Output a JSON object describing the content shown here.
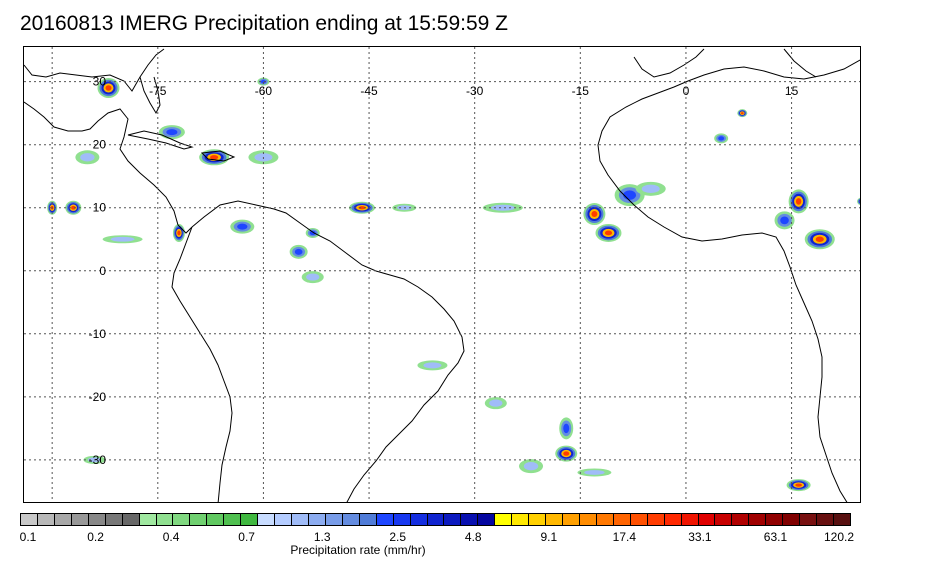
{
  "title": "20160813 IMERG Precipitation ending at 15:59:59 Z",
  "map": {
    "lon_labels": [
      "-75",
      "-60",
      "-45",
      "-30",
      "-15",
      "0",
      "15"
    ],
    "lon_values": [
      -75,
      -60,
      -45,
      -30,
      -15,
      0,
      15
    ],
    "lat_labels": [
      "30",
      "20",
      "10",
      "0",
      "-10",
      "-20",
      "-30"
    ],
    "lat_values": [
      30,
      20,
      10,
      0,
      -10,
      -20,
      -30
    ],
    "grid": "dotted",
    "coastline_color": "#000000"
  },
  "colorbar": {
    "label": "Precipitation rate (mm/hr)",
    "tick_labels": [
      "0.1",
      "0.2",
      "0.4",
      "0.7",
      "1.3",
      "2.5",
      "4.8",
      "9.1",
      "17.4",
      "33.1",
      "63.1",
      "120.2"
    ],
    "colors": [
      "#c8c8c8",
      "#b8b8b8",
      "#a8a8a8",
      "#989898",
      "#888888",
      "#787878",
      "#686868",
      "#a0e8a0",
      "#90e090",
      "#80d880",
      "#70d070",
      "#60c860",
      "#50c050",
      "#40b840",
      "#c8dcff",
      "#b4ccff",
      "#a0bcf8",
      "#8cacf0",
      "#789ce8",
      "#648ce0",
      "#507cd8",
      "#1e46ff",
      "#1838f0",
      "#142ee0",
      "#1024d0",
      "#0c1ac0",
      "#0810b0",
      "#0406a0",
      "#ffff00",
      "#ffe800",
      "#ffd000",
      "#ffb800",
      "#ffa000",
      "#ff8c00",
      "#ff7800",
      "#ff6400",
      "#ff5000",
      "#ff3c00",
      "#ff2800",
      "#f01400",
      "#e00000",
      "#c80000",
      "#b00000",
      "#a00000",
      "#900000",
      "#800000",
      "#781010",
      "#681010",
      "#581010"
    ]
  },
  "precip_cells": [
    {
      "lon": -82,
      "lat": 29,
      "w": 22,
      "h": 20,
      "level": "heavy"
    },
    {
      "lon": -67,
      "lat": 18,
      "w": 30,
      "h": 16,
      "level": "heavy"
    },
    {
      "lon": -73,
      "lat": 22,
      "w": 26,
      "h": 14,
      "level": "moderate"
    },
    {
      "lon": -46,
      "lat": 10,
      "w": 26,
      "h": 12,
      "level": "heavy"
    },
    {
      "lon": -87,
      "lat": 10,
      "w": 16,
      "h": 14,
      "level": "heavy"
    },
    {
      "lon": -72,
      "lat": 6,
      "w": 12,
      "h": 18,
      "level": "heavy"
    },
    {
      "lon": -63,
      "lat": 7,
      "w": 24,
      "h": 14,
      "level": "moderate"
    },
    {
      "lon": -55,
      "lat": 3,
      "w": 18,
      "h": 14,
      "level": "moderate"
    },
    {
      "lon": -53,
      "lat": -1,
      "w": 22,
      "h": 12,
      "level": "light"
    },
    {
      "lon": -26,
      "lat": 10,
      "w": 40,
      "h": 10,
      "level": "light"
    },
    {
      "lon": -40,
      "lat": 10,
      "w": 24,
      "h": 8,
      "level": "light"
    },
    {
      "lon": -13,
      "lat": 9,
      "w": 22,
      "h": 22,
      "level": "heavy"
    },
    {
      "lon": -11,
      "lat": 6,
      "w": 26,
      "h": 18,
      "level": "heavy"
    },
    {
      "lon": -8,
      "lat": 12,
      "w": 30,
      "h": 22,
      "level": "moderate"
    },
    {
      "lon": 5,
      "lat": 21,
      "w": 14,
      "h": 10,
      "level": "moderate"
    },
    {
      "lon": 8,
      "lat": 25,
      "w": 10,
      "h": 8,
      "level": "heavy"
    },
    {
      "lon": 16,
      "lat": 11,
      "w": 20,
      "h": 24,
      "level": "heavy"
    },
    {
      "lon": 19,
      "lat": 5,
      "w": 30,
      "h": 20,
      "level": "heavy"
    },
    {
      "lon": 14,
      "lat": 8,
      "w": 20,
      "h": 18,
      "level": "moderate"
    },
    {
      "lon": 25,
      "lat": 11,
      "w": 10,
      "h": 8,
      "level": "heavy"
    },
    {
      "lon": -17,
      "lat": -29,
      "w": 22,
      "h": 16,
      "level": "heavy"
    },
    {
      "lon": -17,
      "lat": -25,
      "w": 14,
      "h": 22,
      "level": "moderate"
    },
    {
      "lon": -27,
      "lat": -21,
      "w": 22,
      "h": 12,
      "level": "light"
    },
    {
      "lon": -36,
      "lat": -15,
      "w": 30,
      "h": 10,
      "level": "light"
    },
    {
      "lon": -22,
      "lat": -31,
      "w": 24,
      "h": 14,
      "level": "light"
    },
    {
      "lon": 16,
      "lat": -34,
      "w": 24,
      "h": 12,
      "level": "heavy"
    },
    {
      "lon": -60,
      "lat": 30,
      "w": 12,
      "h": 8,
      "level": "moderate"
    },
    {
      "lon": -84,
      "lat": -30,
      "w": 22,
      "h": 8,
      "level": "light"
    },
    {
      "lon": -90,
      "lat": 10,
      "w": 10,
      "h": 14,
      "level": "heavy"
    },
    {
      "lon": -80,
      "lat": 5,
      "w": 40,
      "h": 8,
      "level": "light"
    },
    {
      "lon": -13,
      "lat": -32,
      "w": 34,
      "h": 8,
      "level": "light"
    },
    {
      "lon": -60,
      "lat": 18,
      "w": 30,
      "h": 14,
      "level": "light"
    },
    {
      "lon": -85,
      "lat": 18,
      "w": 24,
      "h": 14,
      "level": "light"
    },
    {
      "lon": -5,
      "lat": 13,
      "w": 30,
      "h": 14,
      "level": "light"
    },
    {
      "lon": -53,
      "lat": 6,
      "w": 14,
      "h": 10,
      "level": "moderate"
    }
  ]
}
